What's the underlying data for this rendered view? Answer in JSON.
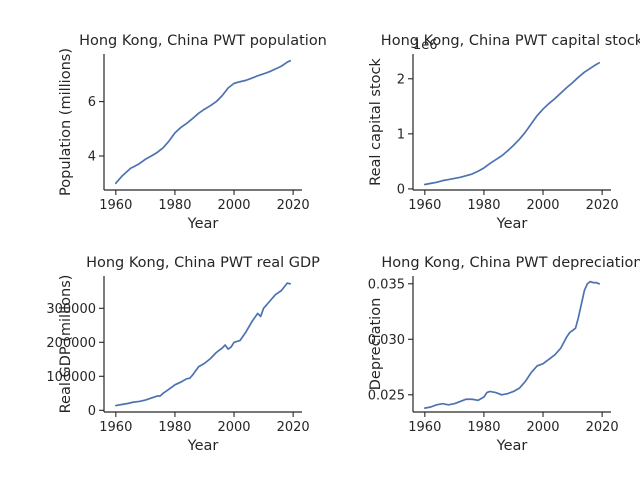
{
  "chart_data": [
    {
      "type": "line",
      "title": "Hong Kong, China PWT population",
      "xlabel": "Year",
      "ylabel": "Population (millions)",
      "offset_text": "",
      "xlim": [
        1956,
        2023
      ],
      "ylim": [
        2.75,
        7.75
      ],
      "xticks": [
        1960,
        1980,
        2000,
        2020
      ],
      "yticks": [
        4,
        6
      ],
      "ytick_labels": [
        "4",
        "6"
      ],
      "color": "#4c72b0",
      "x": [
        1960,
        1962,
        1964,
        1965,
        1966,
        1968,
        1970,
        1972,
        1974,
        1976,
        1978,
        1980,
        1982,
        1984,
        1986,
        1988,
        1990,
        1992,
        1994,
        1996,
        1998,
        2000,
        2002,
        2004,
        2006,
        2008,
        2010,
        2012,
        2014,
        2016,
        2018,
        2019
      ],
      "y": [
        3.0,
        3.25,
        3.45,
        3.55,
        3.6,
        3.72,
        3.88,
        4.0,
        4.13,
        4.3,
        4.55,
        4.85,
        5.05,
        5.2,
        5.38,
        5.57,
        5.72,
        5.85,
        6.0,
        6.22,
        6.5,
        6.67,
        6.73,
        6.78,
        6.86,
        6.95,
        7.02,
        7.1,
        7.2,
        7.3,
        7.45,
        7.5
      ]
    },
    {
      "type": "line",
      "title": "Hong Kong, China PWT capital stock",
      "xlabel": "Year",
      "ylabel": "Real capital stock",
      "offset_text": "1e6",
      "xlim": [
        1956,
        2023
      ],
      "ylim": [
        -0.02,
        2.45
      ],
      "xticks": [
        1960,
        1980,
        2000,
        2020
      ],
      "yticks": [
        0,
        1,
        2
      ],
      "ytick_labels": [
        "0",
        "1",
        "2"
      ],
      "color": "#4c72b0",
      "x": [
        1960,
        1962,
        1964,
        1966,
        1968,
        1970,
        1972,
        1974,
        1976,
        1978,
        1980,
        1982,
        1984,
        1986,
        1988,
        1990,
        1992,
        1994,
        1996,
        1998,
        2000,
        2002,
        2004,
        2006,
        2008,
        2010,
        2012,
        2014,
        2016,
        2018,
        2019
      ],
      "y": [
        0.08,
        0.1,
        0.12,
        0.15,
        0.17,
        0.19,
        0.21,
        0.24,
        0.27,
        0.32,
        0.38,
        0.46,
        0.53,
        0.6,
        0.69,
        0.79,
        0.9,
        1.03,
        1.18,
        1.33,
        1.45,
        1.55,
        1.64,
        1.74,
        1.84,
        1.93,
        2.03,
        2.12,
        2.19,
        2.26,
        2.29
      ]
    },
    {
      "type": "line",
      "title": "Hong Kong, China PWT real GDP",
      "xlabel": "Year",
      "ylabel": "Real GDP (millions)",
      "offset_text": "",
      "xlim": [
        1956,
        2023
      ],
      "ylim": [
        -5000,
        395000
      ],
      "xticks": [
        1960,
        1980,
        2000,
        2020
      ],
      "yticks": [
        0,
        100000,
        200000,
        300000
      ],
      "ytick_labels": [
        "0",
        "100000",
        "200000",
        "300000"
      ],
      "color": "#4c72b0",
      "x": [
        1960,
        1962,
        1964,
        1966,
        1968,
        1970,
        1972,
        1974,
        1975,
        1976,
        1978,
        1980,
        1982,
        1984,
        1985,
        1986,
        1988,
        1990,
        1992,
        1994,
        1996,
        1997,
        1998,
        1999,
        2000,
        2002,
        2004,
        2006,
        2008,
        2009,
        2010,
        2012,
        2014,
        2016,
        2018,
        2019
      ],
      "y": [
        14000,
        17000,
        20000,
        24000,
        26000,
        30000,
        36000,
        42000,
        42000,
        50000,
        62000,
        75000,
        83000,
        93000,
        94000,
        104000,
        128000,
        138000,
        152000,
        170000,
        183000,
        192000,
        180000,
        186000,
        200000,
        205000,
        230000,
        260000,
        285000,
        276000,
        300000,
        320000,
        340000,
        352000,
        374000,
        372000
      ]
    },
    {
      "type": "line",
      "title": "Hong Kong, China PWT depreciation",
      "xlabel": "Year",
      "ylabel": "Depreciation",
      "offset_text": "",
      "xlim": [
        1956,
        2023
      ],
      "ylim": [
        0.02345,
        0.0357
      ],
      "xticks": [
        1960,
        1980,
        2000,
        2020
      ],
      "yticks": [
        0.025,
        0.03,
        0.035
      ],
      "ytick_labels": [
        "0.025",
        "0.030",
        "0.035"
      ],
      "color": "#4c72b0",
      "x": [
        1960,
        1962,
        1964,
        1966,
        1968,
        1970,
        1972,
        1974,
        1976,
        1978,
        1980,
        1981,
        1982,
        1984,
        1986,
        1988,
        1990,
        1992,
        1994,
        1996,
        1998,
        2000,
        2002,
        2004,
        2006,
        2008,
        2009,
        2010,
        2011,
        2012,
        2013,
        2014,
        2015,
        2016,
        2017,
        2018,
        2019
      ],
      "y": [
        0.0238,
        0.0239,
        0.0241,
        0.0242,
        0.0241,
        0.0242,
        0.0244,
        0.0246,
        0.0246,
        0.0245,
        0.0248,
        0.0252,
        0.0253,
        0.0252,
        0.025,
        0.0251,
        0.0253,
        0.0256,
        0.0262,
        0.027,
        0.0276,
        0.0278,
        0.0282,
        0.0286,
        0.0292,
        0.0302,
        0.0306,
        0.0308,
        0.031,
        0.032,
        0.0332,
        0.0344,
        0.035,
        0.0352,
        0.0351,
        0.0351,
        0.035
      ]
    }
  ]
}
